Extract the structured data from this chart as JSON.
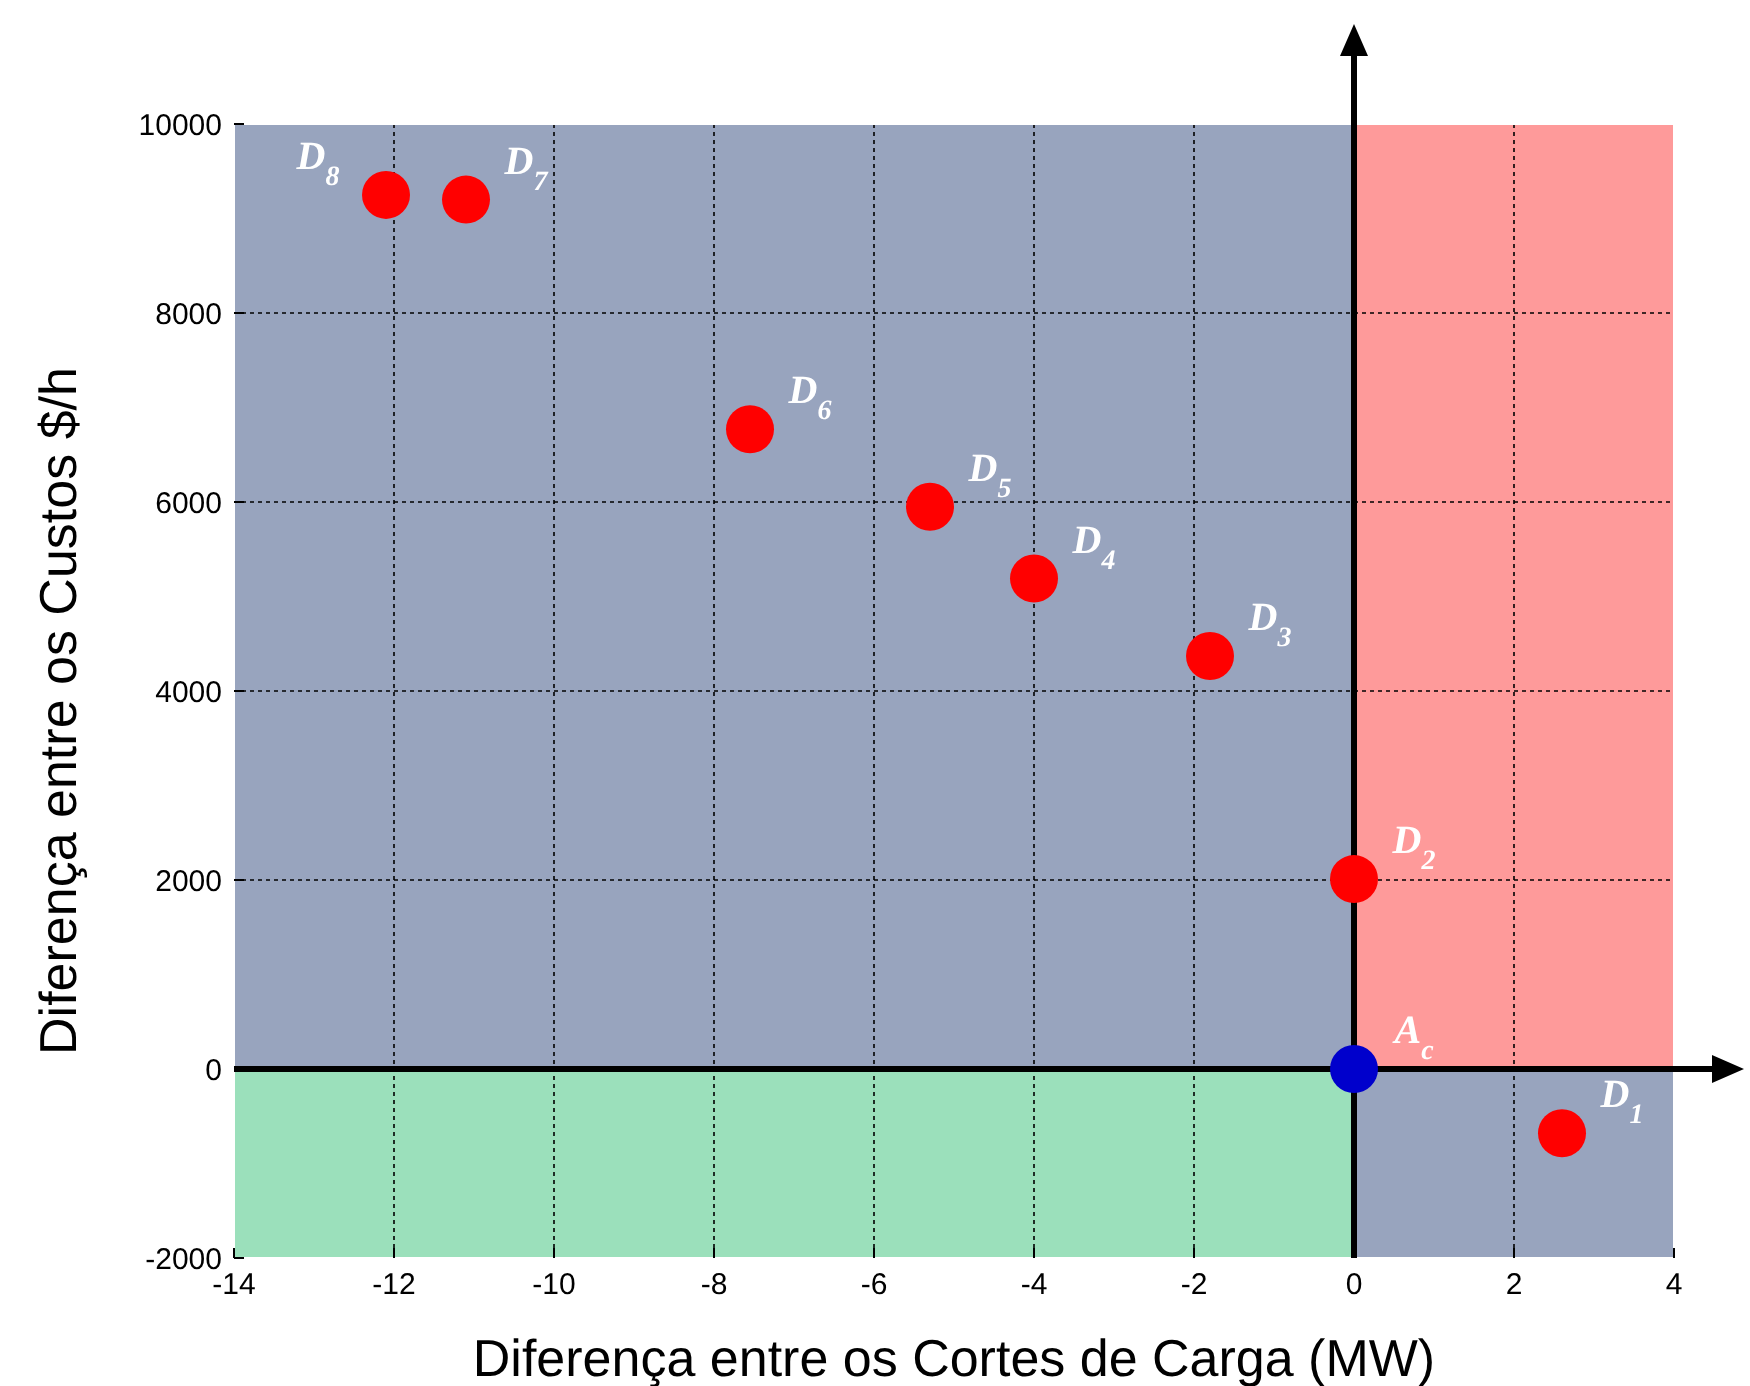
{
  "chart_data": {
    "type": "scatter",
    "xlabel": "Diferença entre os Cortes de Carga  (MW)",
    "ylabel": "Diferença entre os Custos $/h",
    "xlim": [
      -14,
      4
    ],
    "ylim": [
      -2000,
      10000
    ],
    "xticks": [
      -14,
      -12,
      -10,
      -8,
      -6,
      -4,
      -2,
      0,
      2,
      4
    ],
    "yticks": [
      -2000,
      0,
      2000,
      4000,
      6000,
      8000,
      10000
    ],
    "grid": true,
    "marker": "circle",
    "series": [
      {
        "color": "#ff0000",
        "x": [
          -12.1,
          -11.1,
          -7.55,
          -5.3,
          -4.0,
          -1.8,
          0,
          2.6
        ],
        "values": [
          9250,
          9200,
          6770,
          5950,
          5190,
          4370,
          2010,
          -680
        ]
      },
      {
        "color": "#0000cc",
        "x": [
          0
        ],
        "values": [
          0
        ]
      }
    ],
    "bands": [
      {
        "axis": "x",
        "from": 0,
        "to": 4,
        "color": "#fe9a9a"
      },
      {
        "axis": "y",
        "from": -2000,
        "to": 0,
        "color": "#9be0bb"
      }
    ],
    "annotations": [
      {
        "text": "D$_{8}$",
        "x": -12.1,
        "y": 9250
      },
      {
        "text": "D$_{7}$",
        "x": -11.1,
        "y": 9200
      },
      {
        "text": "D$_{6}$",
        "x": -7.55,
        "y": 6770
      },
      {
        "text": "D$_{5}$",
        "x": -5.3,
        "y": 5950
      },
      {
        "text": "D$_{4}$",
        "x": -4.0,
        "y": 5190
      },
      {
        "text": "D$_{3}$",
        "x": -1.8,
        "y": 4370
      },
      {
        "text": "D$_{2}$",
        "x": 0,
        "y": 2010
      },
      {
        "text": "A$_{c}$",
        "x": 0,
        "y": 0
      },
      {
        "text": "D$_{1}$",
        "x": 2.6,
        "y": -680
      }
    ]
  }
}
